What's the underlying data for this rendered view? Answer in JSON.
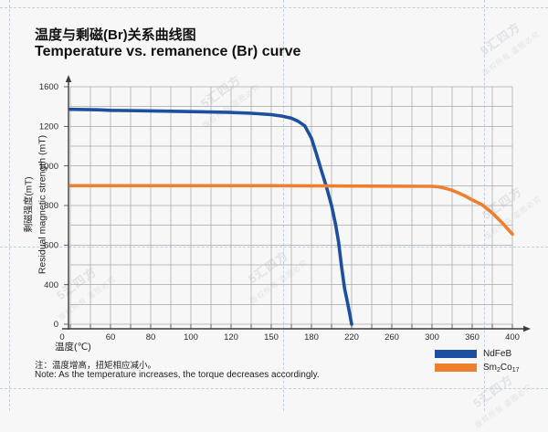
{
  "header": {
    "title_zh": "温度与剩磁(Br)关系曲线图",
    "title_en": "Temperature vs. remanence (Br) curve"
  },
  "chart_data": {
    "type": "line",
    "title": "Temperature vs. remanence (Br) curve",
    "xlabel": "温度(℃)",
    "ylabel_zh": "剩磁强度(mT)",
    "ylabel_en": "Residual magnetic strength (mT)",
    "grid": true,
    "legend_position": "bottom-right",
    "x_ticks": [
      0,
      60,
      80,
      100,
      120,
      150,
      180,
      220,
      260,
      300,
      360,
      400
    ],
    "y_ticks": [
      1600,
      1200,
      1000,
      800,
      600,
      400,
      0
    ],
    "xlim": [
      0,
      400
    ],
    "ylim": [
      0,
      1600
    ],
    "series": [
      {
        "name": "NdFeB",
        "color": "#1c4fa0",
        "points": [
          [
            0,
            1372
          ],
          [
            20,
            1370
          ],
          [
            40,
            1367
          ],
          [
            60,
            1362
          ],
          [
            80,
            1356
          ],
          [
            100,
            1349
          ],
          [
            120,
            1341
          ],
          [
            135,
            1332
          ],
          [
            150,
            1318
          ],
          [
            158,
            1304
          ],
          [
            165,
            1282
          ],
          [
            170,
            1252
          ],
          [
            175,
            1205
          ],
          [
            180,
            1140
          ],
          [
            185,
            1060
          ],
          [
            190,
            975
          ],
          [
            195,
            893
          ],
          [
            200,
            800
          ],
          [
            204,
            705
          ],
          [
            207,
            615
          ],
          [
            210,
            490
          ],
          [
            213,
            360
          ],
          [
            216,
            215
          ],
          [
            218,
            110
          ],
          [
            220,
            0
          ]
        ]
      },
      {
        "name": "Sm2Co17",
        "color": "#ee7f2e",
        "points": [
          [
            0,
            900
          ],
          [
            50,
            900
          ],
          [
            100,
            900
          ],
          [
            150,
            900
          ],
          [
            200,
            899
          ],
          [
            250,
            898
          ],
          [
            300,
            897
          ],
          [
            310,
            894
          ],
          [
            320,
            887
          ],
          [
            330,
            877
          ],
          [
            340,
            863
          ],
          [
            350,
            847
          ],
          [
            360,
            828
          ],
          [
            370,
            803
          ],
          [
            380,
            762
          ],
          [
            390,
            712
          ],
          [
            400,
            655
          ]
        ]
      }
    ]
  },
  "legend": {
    "items": [
      {
        "label": "NdFeB",
        "color": "#1c4fa0"
      },
      {
        "base1": "Sm",
        "sub1": "2",
        "base2": "Co",
        "sub2": "17",
        "color": "#ee7f2e"
      }
    ]
  },
  "note": {
    "line_zh": "注：温度增高，扭矩相应减小。",
    "line_en": "Note: As the temperature increases, the torque decreases accordingly."
  },
  "watermark": {
    "brand": "5汇四方",
    "notice": "版权所有 盗图必究"
  },
  "colors": {
    "ndfeb_blue": "#1c4fa0",
    "smco_orange": "#ee7f2e",
    "grid_gray": "#a9a9a9",
    "axis_dark": "#3c3c3c",
    "background": "#f7f7f8"
  }
}
